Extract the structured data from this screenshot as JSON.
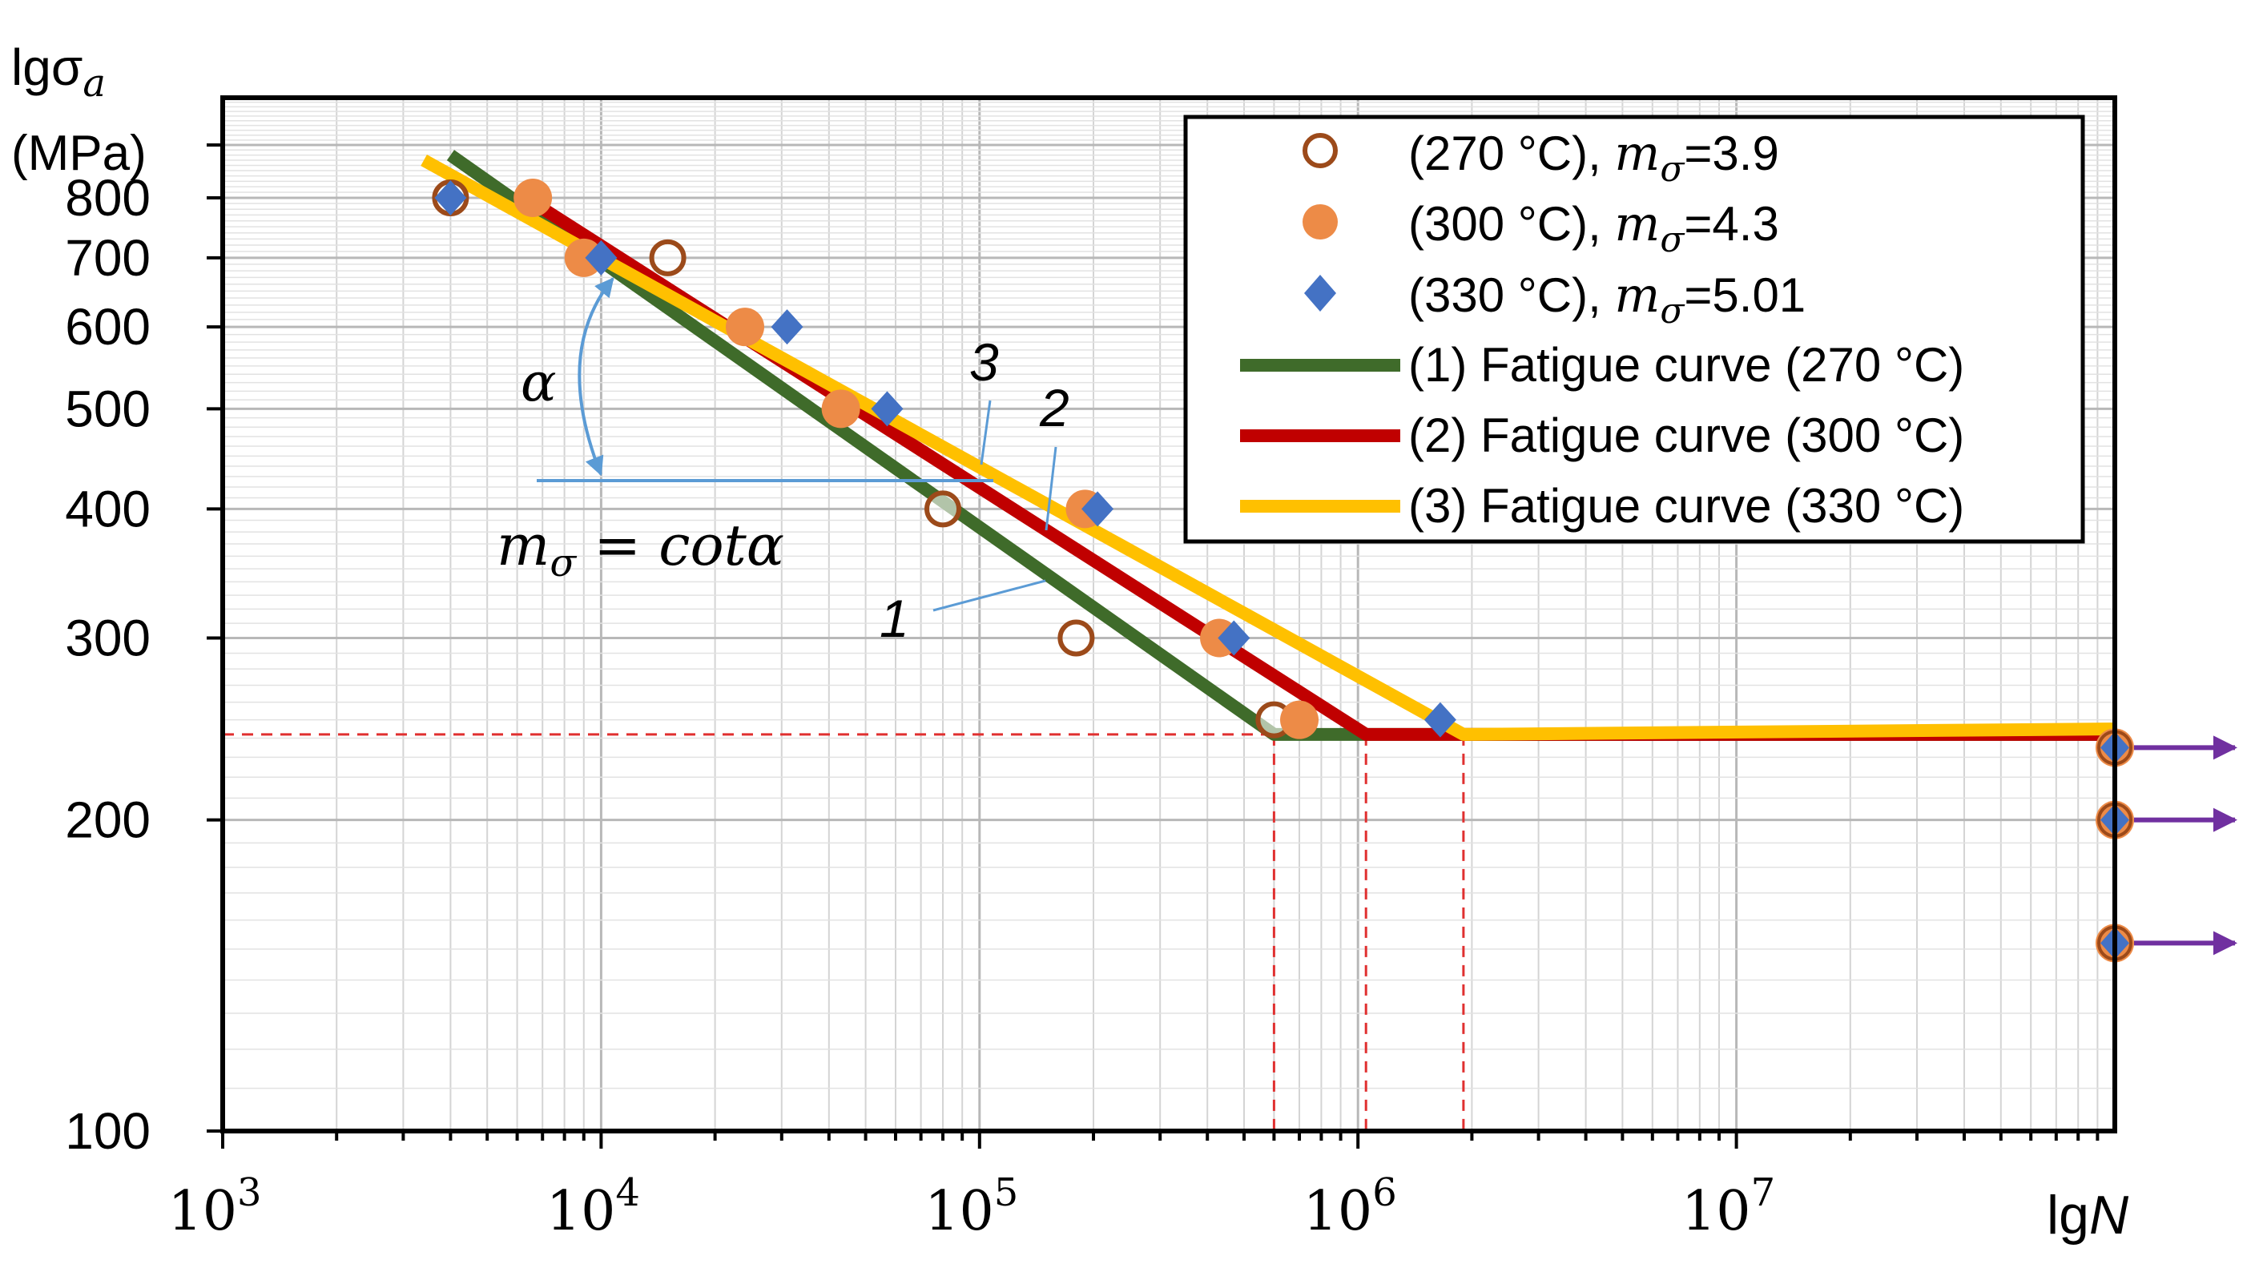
{
  "chart_data": {
    "type": "scatter",
    "title": "",
    "ylabel_main": "lgσ",
    "ylabel_sub": "a",
    "ylabel_unit": "(MPa)",
    "xlabel_prefix": "lg",
    "xlabel_var": "N",
    "x_scale": "log",
    "y_scale": "log",
    "xlim": [
      1000,
      100000000
    ],
    "ylim": [
      100,
      1000
    ],
    "grid": true,
    "x_ticks": [
      {
        "value": 1000,
        "base": "10",
        "exp": "3"
      },
      {
        "value": 10000,
        "base": "10",
        "exp": "4"
      },
      {
        "value": 100000,
        "base": "10",
        "exp": "5"
      },
      {
        "value": 1000000,
        "base": "10",
        "exp": "6"
      },
      {
        "value": 10000000,
        "base": "10",
        "exp": "7"
      }
    ],
    "y_ticks": [
      {
        "value": 100,
        "label": "100"
      },
      {
        "value": 200,
        "label": "200"
      },
      {
        "value": 300,
        "label": "300"
      },
      {
        "value": 400,
        "label": "400"
      },
      {
        "value": 500,
        "label": "500"
      },
      {
        "value": 600,
        "label": "600"
      },
      {
        "value": 700,
        "label": "700"
      },
      {
        "value": 800,
        "label": "800"
      }
    ],
    "scatter_series": [
      {
        "name": "(270 °C), mσ=3.9",
        "legend_prefix": "(270 °C), ",
        "legend_m": "m",
        "legend_sub": "σ",
        "legend_value": "=3.9",
        "marker": "open-circle",
        "color": "#9c4a1a",
        "points": [
          [
            4000,
            800
          ],
          [
            15000,
            700
          ],
          [
            80000,
            400
          ],
          [
            180000,
            300
          ],
          [
            600000,
            250
          ]
        ]
      },
      {
        "name": "(300 °C), mσ=4.3",
        "legend_prefix": "(300 °C), ",
        "legend_m": "m",
        "legend_sub": "σ",
        "legend_value": "=4.3",
        "marker": "filled-circle",
        "color": "#ed8b47",
        "points": [
          [
            6600,
            800
          ],
          [
            9000,
            700
          ],
          [
            24000,
            600
          ],
          [
            43000,
            500
          ],
          [
            190000,
            400
          ],
          [
            430000,
            300
          ],
          [
            700000,
            250
          ]
        ]
      },
      {
        "name": "(330 °C), mσ=5.01",
        "legend_prefix": "(330 °C), ",
        "legend_m": "m",
        "legend_sub": "σ",
        "legend_value": "=5.01",
        "marker": "diamond",
        "color": "#4472c4",
        "points": [
          [
            4000,
            800
          ],
          [
            10000,
            700
          ],
          [
            31000,
            600
          ],
          [
            57000,
            500
          ],
          [
            205000,
            400
          ],
          [
            470000,
            300
          ],
          [
            1650000,
            250
          ]
        ]
      }
    ],
    "line_series": [
      {
        "name": "(1) Fatigue curve (270 °C)",
        "color": "#3f6b2a",
        "label": "1",
        "points": [
          [
            4000,
            880
          ],
          [
            600000,
            242
          ],
          [
            100000000,
            242
          ]
        ]
      },
      {
        "name": "(2) Fatigue curve (300 °C)",
        "color": "#c00000",
        "label": "2",
        "points": [
          [
            6000,
            810
          ],
          [
            1050000,
            242
          ],
          [
            100000000,
            242
          ]
        ]
      },
      {
        "name": "(3) Fatigue curve (330 °C)",
        "color": "#ffc000",
        "label": "3",
        "points": [
          [
            3400,
            870
          ],
          [
            1900000,
            242
          ],
          [
            100000000,
            245
          ]
        ]
      }
    ],
    "reference_line": {
      "y": 242,
      "x_breaks": [
        600000,
        1050000,
        1900000
      ],
      "color": "#e03030"
    },
    "runouts": [
      {
        "x": 100000000,
        "y": 235
      },
      {
        "x": 100000000,
        "y": 200
      },
      {
        "x": 100000000,
        "y": 152
      }
    ],
    "angle_annotation": {
      "symbol": "α",
      "formula_m": "m",
      "formula_sub": "σ",
      "formula_rest": " = cotα"
    }
  }
}
